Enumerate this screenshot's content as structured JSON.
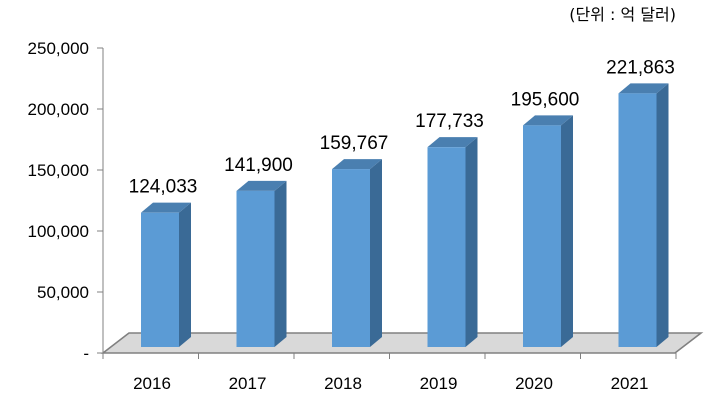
{
  "chart_data": {
    "type": "bar",
    "unit_note": "(단위 : 억 달러)",
    "categories": [
      "2016",
      "2017",
      "2018",
      "2019",
      "2020",
      "2021"
    ],
    "series": [
      {
        "values": [
          124033,
          141900,
          159767,
          177733,
          195600,
          221863
        ]
      }
    ],
    "data_labels": [
      "124,033",
      "141,900",
      "159,767",
      "177,733",
      "195,600",
      "221,863"
    ],
    "y_ticks": [
      {
        "value": 0,
        "label": "-"
      },
      {
        "value": 50000,
        "label": "50,000"
      },
      {
        "value": 100000,
        "label": "100,000"
      },
      {
        "value": 150000,
        "label": "150,000"
      },
      {
        "value": 200000,
        "label": "200,000"
      },
      {
        "value": 250000,
        "label": "250,000"
      }
    ],
    "ylim": [
      0,
      250000
    ],
    "grid": false,
    "bar_style": "3d",
    "colors": {
      "bar_front": "#5b9bd5",
      "bar_side": "#3a6a96",
      "bar_top": "#4a7fb0",
      "floor": "#d9d9d9",
      "axis": "#808080"
    }
  }
}
